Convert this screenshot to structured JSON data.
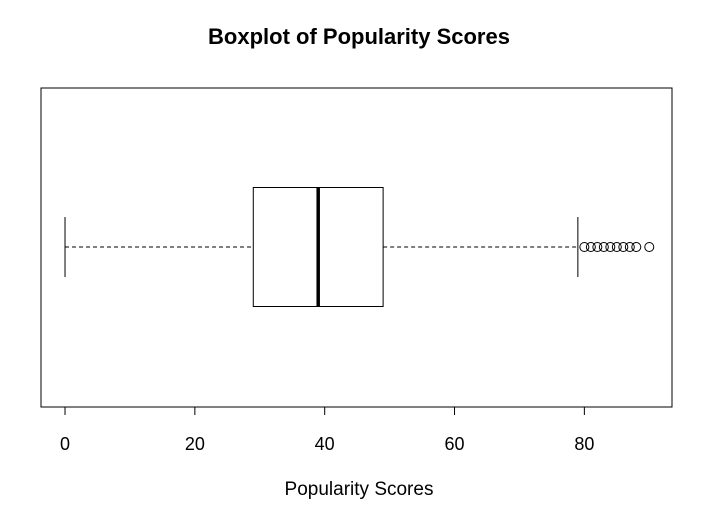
{
  "chart_data": {
    "type": "boxplot",
    "orientation": "horizontal",
    "title": "Boxplot of Popularity Scores",
    "xlabel": "Popularity Scores",
    "ylabel": "",
    "xlim": [
      -3.7,
      93.5
    ],
    "x_ticks": [
      0,
      20,
      40,
      60,
      80
    ],
    "x_tick_labels": [
      "0",
      "20",
      "40",
      "60",
      "80"
    ],
    "box": {
      "whisker_low": 0,
      "q1": 29,
      "median": 39,
      "q3": 49,
      "whisker_high": 79
    },
    "outliers": [
      80,
      81,
      82,
      83,
      84,
      85,
      86,
      87,
      88,
      90
    ]
  }
}
